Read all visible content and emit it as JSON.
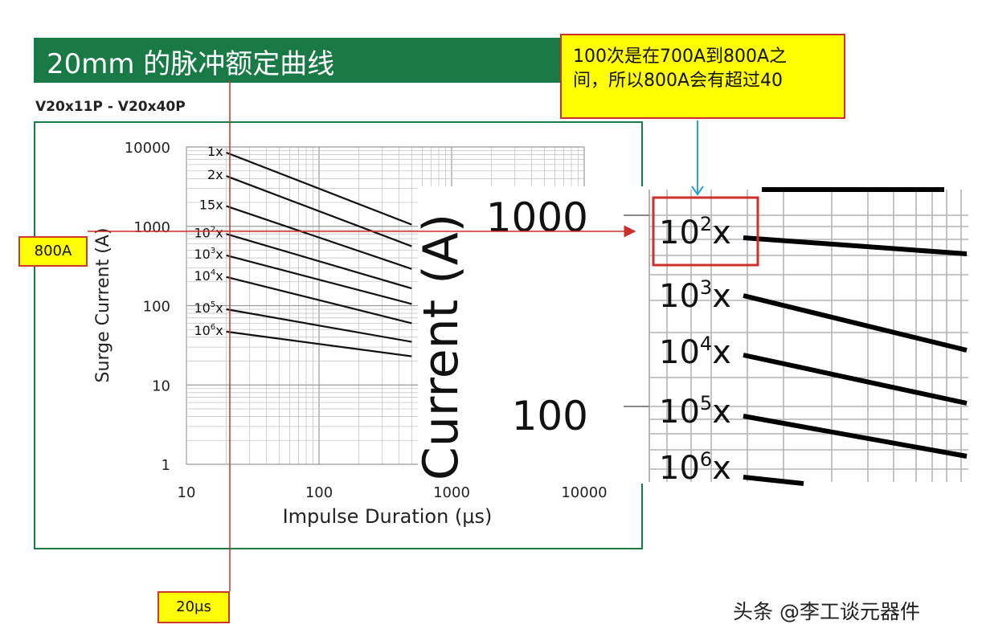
{
  "banner": {
    "title": "20mm 的脉冲额定曲线"
  },
  "model_label": "V20x11P - V20x40P",
  "callout": {
    "line1": "100次是在700A到800A之",
    "line2": "间，所以800A会有超过40"
  },
  "markers": {
    "current_tag": "800A",
    "duration_tag": "20μs"
  },
  "watermark": "头条 @李工谈元器件",
  "colors": {
    "banner": "#1a7a45",
    "frame": "#1a7a45",
    "highlight": "#ffff00",
    "guide_line": "#d0302a",
    "arrow": "#2a9fd8"
  },
  "chart_data": {
    "type": "line",
    "xscale": "log",
    "yscale": "log",
    "xlabel": "Impulse Duration (μs)",
    "ylabel": "Surge Current (A)",
    "xlim": [
      10,
      10000
    ],
    "ylim": [
      1,
      10000
    ],
    "x_ticks": [
      "10",
      "100",
      "1000",
      "10000"
    ],
    "y_ticks": [
      "1",
      "10",
      "100",
      "1000",
      "10000"
    ],
    "grid": true,
    "series": [
      {
        "name": "1x",
        "label_base": "1",
        "label_exp": "",
        "points": [
          [
            20,
            8500
          ],
          [
            500,
            1050
          ]
        ]
      },
      {
        "name": "2x",
        "label_base": "2",
        "label_exp": "",
        "points": [
          [
            20,
            4300
          ],
          [
            500,
            560
          ]
        ]
      },
      {
        "name": "15x",
        "label_base": "15",
        "label_exp": "",
        "points": [
          [
            20,
            1800
          ],
          [
            500,
            290
          ]
        ]
      },
      {
        "name": "10²x",
        "label_base": "10",
        "label_exp": "2",
        "points": [
          [
            20,
            800
          ],
          [
            500,
            165
          ]
        ]
      },
      {
        "name": "10³x",
        "label_base": "10",
        "label_exp": "3",
        "points": [
          [
            20,
            430
          ],
          [
            500,
            105
          ]
        ]
      },
      {
        "name": "10⁴x",
        "label_base": "10",
        "label_exp": "4",
        "points": [
          [
            20,
            230
          ],
          [
            500,
            60
          ]
        ]
      },
      {
        "name": "10⁵x",
        "label_base": "10",
        "label_exp": "5",
        "points": [
          [
            20,
            90
          ],
          [
            500,
            35
          ]
        ]
      },
      {
        "name": "10⁶x",
        "label_base": "10",
        "label_exp": "6",
        "points": [
          [
            20,
            47
          ],
          [
            500,
            23
          ]
        ]
      }
    ],
    "guides": {
      "x": 20,
      "y": 800
    }
  },
  "zoom_inset": {
    "axis_label": "Current (A)",
    "tick_labels": [
      "1000",
      "100"
    ],
    "curve_labels": [
      {
        "base": "10",
        "exp": "2"
      },
      {
        "base": "10",
        "exp": "3"
      },
      {
        "base": "10",
        "exp": "4"
      },
      {
        "base": "10",
        "exp": "5"
      },
      {
        "base": "10",
        "exp": "6"
      }
    ]
  }
}
